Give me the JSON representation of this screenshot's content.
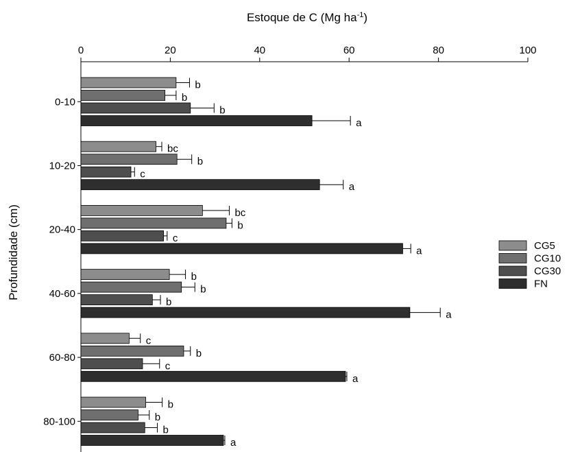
{
  "chart_data": {
    "type": "bar",
    "orientation": "horizontal",
    "title": "",
    "xlabel_main": "Estoque de C (Mg ha",
    "xlabel_sup": "-1",
    "xlabel_end": ")",
    "ylabel": "Profundidade (cm)",
    "xlim": [
      0,
      100
    ],
    "xticks": [
      "0",
      "20",
      "40",
      "60",
      "80",
      "100"
    ],
    "xaxis_position": "top",
    "grid": false,
    "legend_position": "right",
    "categories": [
      "0-10",
      "10-20",
      "20-40",
      "40-60",
      "60-80",
      "80-100"
    ],
    "series": [
      {
        "name": "CG5",
        "color": "#8c8c8c",
        "values": [
          21.3,
          16.8,
          27.2,
          19.8,
          10.8,
          14.5
        ],
        "errors": [
          3.0,
          1.3,
          6.0,
          3.6,
          2.5,
          3.7
        ],
        "letters": [
          "b",
          "bc",
          "bc",
          "b",
          "c",
          "b"
        ]
      },
      {
        "name": "CG10",
        "color": "#6f6f6f",
        "values": [
          18.8,
          21.5,
          32.5,
          22.5,
          23.0,
          12.8
        ],
        "errors": [
          2.5,
          3.3,
          1.3,
          3.0,
          1.5,
          2.5
        ],
        "letters": [
          "b",
          "b",
          "b",
          "b",
          "b",
          "b"
        ]
      },
      {
        "name": "CG30",
        "color": "#4e4e4e",
        "values": [
          24.5,
          11.2,
          18.5,
          16.0,
          13.8,
          14.3
        ],
        "errors": [
          5.3,
          0.8,
          0.8,
          1.8,
          3.8,
          2.8
        ],
        "letters": [
          "b",
          "c",
          "c",
          "b",
          "c",
          "b"
        ]
      },
      {
        "name": "FN",
        "color": "#2e2e2e",
        "values": [
          51.7,
          53.4,
          72.0,
          73.6,
          59.2,
          31.9
        ],
        "errors": [
          8.6,
          5.3,
          1.8,
          6.8,
          0.3,
          0.3
        ],
        "letters": [
          "a",
          "a",
          "a",
          "a",
          "a",
          "a"
        ]
      }
    ]
  }
}
